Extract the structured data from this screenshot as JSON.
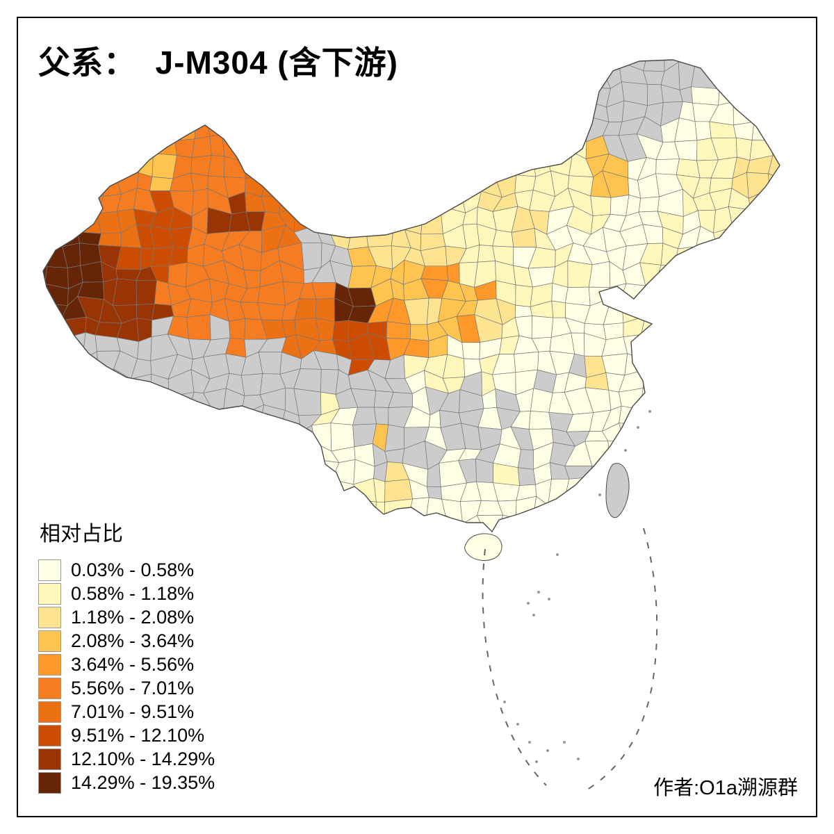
{
  "page": {
    "background": "#FFFFFF",
    "frame_border_color": "#000000"
  },
  "title": "父系：  J-M304 (含下游)",
  "credit": "作者:O1a溯源群",
  "legend": {
    "title": "相对占比",
    "bins": [
      {
        "label": "0.03% - 0.58%",
        "color": "#FFFFE5"
      },
      {
        "label": "0.58% - 1.18%",
        "color": "#FFF7BC"
      },
      {
        "label": "1.18% - 2.08%",
        "color": "#FEE391"
      },
      {
        "label": "2.08% - 3.64%",
        "color": "#FEC44F"
      },
      {
        "label": "3.64% - 5.56%",
        "color": "#FE9929"
      },
      {
        "label": "5.56% - 7.01%",
        "color": "#F57C21"
      },
      {
        "label": "7.01% - 9.51%",
        "color": "#EC7014"
      },
      {
        "label": "9.51% - 12.10%",
        "color": "#CC4C02"
      },
      {
        "label": "12.10% - 14.29%",
        "color": "#993404"
      },
      {
        "label": "14.29% - 19.35%",
        "color": "#662506"
      }
    ],
    "no_data_color": "#CCCCCC"
  },
  "map": {
    "region": "China",
    "border_color": "#4A4A4A",
    "cell_border_color": "#777777",
    "sea_dash_color": "#666666"
  }
}
